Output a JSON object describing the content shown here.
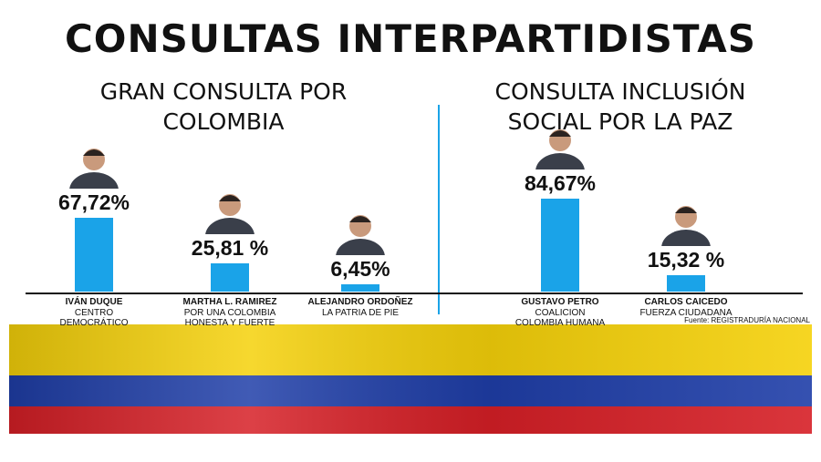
{
  "title": "CONSULTAS INTERPARTIDISTAS",
  "source": "Fuente: REGISTRADURÍA NACIONAL",
  "chart_data": [
    {
      "type": "bar",
      "title": "GRAN CONSULTA POR COLOMBIA",
      "categories": [
        "IVÁN DUQUE",
        "MARTHA L. RAMIREZ",
        "ALEJANDRO ORDOÑEZ"
      ],
      "parties": [
        "CENTRO DEMOCRÁTICO",
        "POR UNA COLOMBIA HONESTA Y FUERTE",
        "LA PATRIA DE PIE"
      ],
      "values": [
        67.72,
        25.81,
        6.45
      ],
      "value_labels": [
        "67,72%",
        "25,81 %",
        "6,45%"
      ],
      "color": "#1aa3e8"
    },
    {
      "type": "bar",
      "title": "CONSULTA INCLUSIÓN SOCIAL POR LA PAZ",
      "categories": [
        "GUSTAVO PETRO",
        "CARLOS CAICEDO"
      ],
      "parties": [
        "COALICION COLOMBIA HUMANA",
        "FUERZA CIUDADANA"
      ],
      "values": [
        84.67,
        15.32
      ],
      "value_labels": [
        "84,67%",
        "15,32 %"
      ],
      "color": "#1aa3e8"
    }
  ]
}
